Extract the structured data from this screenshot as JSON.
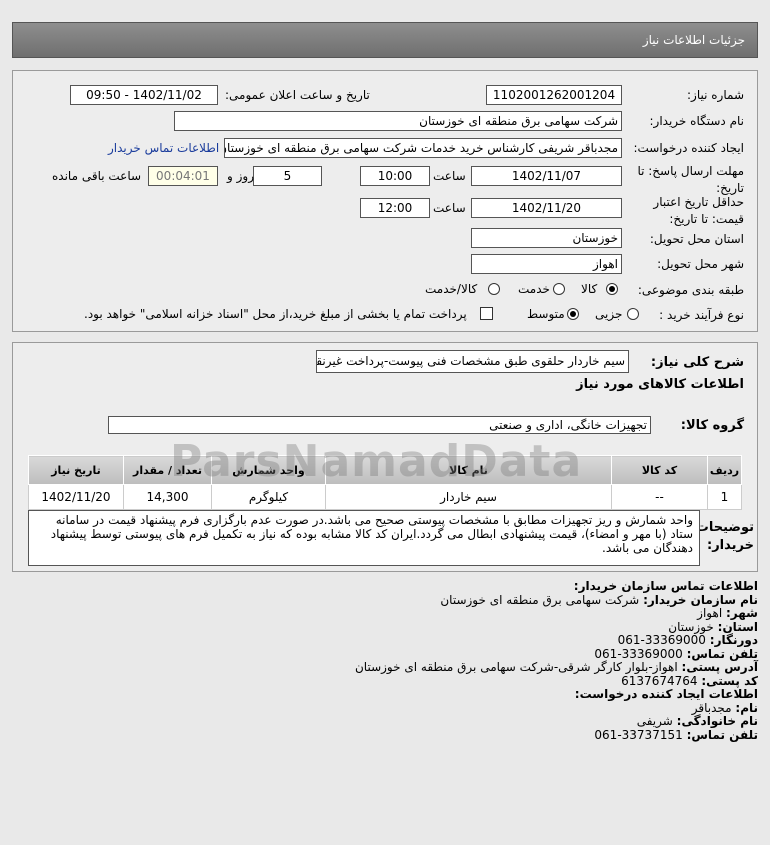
{
  "header": {
    "title": "جزئیات اطلاعات نیاز"
  },
  "form": {
    "need_number_label": "شماره نیاز:",
    "need_number": "1102001262001204",
    "announce_label": "تاریخ و ساعت اعلان عمومی:",
    "announce_value": "1402/11/02 - 09:50",
    "buyer_org_label": "نام دستگاه خریدار:",
    "buyer_org": "شرکت سهامی برق منطقه ای خوزستان",
    "creator_label": "ایجاد کننده درخواست:",
    "creator": "مجدباقر شریفی کارشناس خرید خدمات شرکت سهامی برق منطقه ای خوزستان",
    "contact_link": "اطلاعات تماس خریدار",
    "deadline_label_1": "مهلت ارسال پاسخ: تا",
    "deadline_label_2": "تاریخ:",
    "deadline_date": "1402/11/07",
    "time_label": "ساعت",
    "deadline_time": "10:00",
    "days": "5",
    "days_label": "روز و",
    "remaining": "00:04:01",
    "remaining_label": "ساعت باقی مانده",
    "validity_label_1": "حداقل تاریخ اعتبار",
    "validity_label_2": "قیمت: تا تاریخ:",
    "validity_date": "1402/11/20",
    "validity_time": "12:00",
    "province_label": "استان محل تحویل:",
    "province": "خوزستان",
    "city_label": "شهر محل تحویل:",
    "city": "اهواز",
    "category_label": "طبقه بندی موضوعی:",
    "category_options": [
      "کالا",
      "خدمت",
      "کالا/خدمت"
    ],
    "category_selected": "کالا",
    "purchase_label": "نوع فرآیند خرید :",
    "purchase_options": [
      "جزیی",
      "متوسط"
    ],
    "purchase_selected": "متوسط",
    "payment_note": "پرداخت تمام یا بخشی از مبلغ خرید،از محل \"اسناد خزانه اسلامی\" خواهد بود."
  },
  "details": {
    "summary_label": "شرح کلی نیاز:",
    "summary": "سیم خاردار حلقوی طبق مشخصات فنی پیوست-پرداخت غیرنقدی",
    "goods_heading": "اطلاعات کالاهای مورد نیاز",
    "group_label": "گروه کالا:",
    "group": "تجهیزات خانگی، اداری و صنعتی",
    "table": {
      "headers": [
        "ردیف",
        "کد کالا",
        "نام کالا",
        "واحد شمارش",
        "تعداد / مقدار",
        "تاریخ نیاز"
      ],
      "rows": [
        [
          "1",
          "--",
          "سیم خاردار",
          "کیلوگرم",
          "14,300",
          "1402/11/20"
        ]
      ]
    },
    "notes_label_1": "توضیحات",
    "notes_label_2": "خریدار:",
    "notes": "واحد شمارش و ریز تجهیزات مطابق با مشخصات پیوستی صحیح می باشد.در صورت عدم بارگزاری فرم پیشنهاد قیمت در سامانه ستاد (با مهر و امضاء)، قیمت پیشنهادی ابطال می گردد.ایران کد کالا مشابه بوده که نیاز به تکمیل فرم های پیوستی توسط پیشنهاد دهندگان می باشد."
  },
  "contact": {
    "heading": "اطلاعات تماس سازمان خریدار:",
    "items": [
      {
        "label": "نام سازمان خریدار:",
        "value": "شرکت سهامی برق منطقه ای خوزستان"
      },
      {
        "label": "شهر:",
        "value": "اهواز"
      },
      {
        "label": "استان:",
        "value": "خوزستان"
      },
      {
        "label": "دورنگار:",
        "value": "33369000-061"
      },
      {
        "label": "تلفن تماس:",
        "value": "33369000-061"
      },
      {
        "label": "آدرس پستی:",
        "value": "اهواز-بلوار کارگر شرقی-شرکت سهامی برق منطقه ای خوزستان"
      },
      {
        "label": "کد پستی:",
        "value": "6137674764"
      }
    ],
    "creator_heading": "اطلاعات ایجاد کننده درخواست:",
    "creator_items": [
      {
        "label": "نام:",
        "value": "مجدباقر"
      },
      {
        "label": "نام خانوادگی:",
        "value": "شریفی"
      },
      {
        "label": "تلفن تماس:",
        "value": "33737151-061"
      }
    ]
  },
  "watermark": "ParsNamadData"
}
